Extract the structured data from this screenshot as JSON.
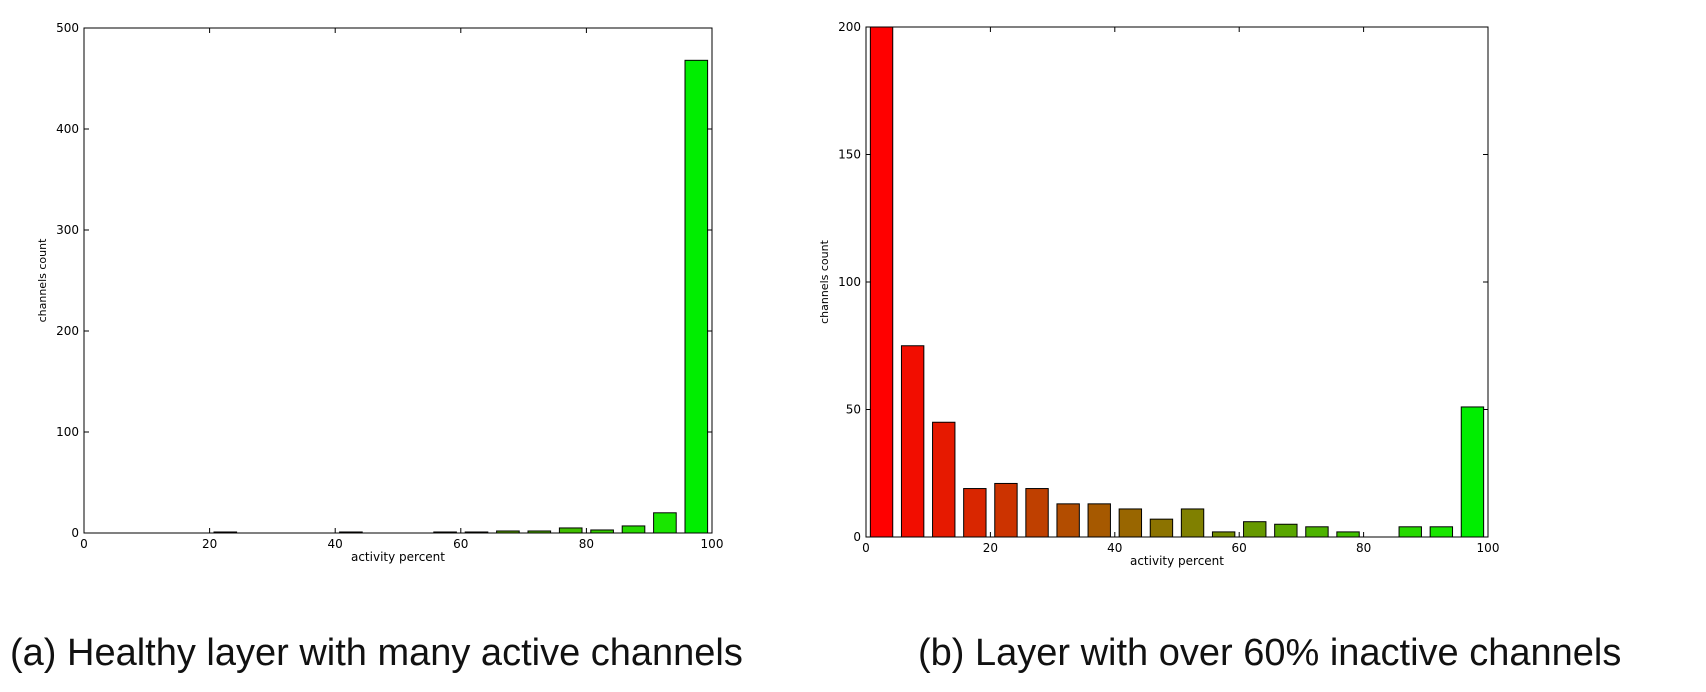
{
  "figure": {
    "captions": [
      "(a) Healthy layer with many active channels",
      "(b) Layer with over 60% inactive channels"
    ]
  },
  "chart_data": [
    {
      "type": "bar",
      "xlabel": "activity percent",
      "ylabel": "channels count",
      "xlim": [
        0,
        100
      ],
      "ylim": [
        0,
        500
      ],
      "xticks": [
        0,
        20,
        40,
        60,
        80,
        100
      ],
      "yticks": [
        0,
        100,
        200,
        300,
        400,
        500
      ],
      "grid": false,
      "bins": [
        2.5,
        7.5,
        12.5,
        17.5,
        22.5,
        27.5,
        32.5,
        37.5,
        42.5,
        47.5,
        52.5,
        57.5,
        62.5,
        67.5,
        72.5,
        77.5,
        82.5,
        87.5,
        92.5,
        97.5
      ],
      "values": [
        0,
        0,
        0,
        0,
        1,
        0,
        0,
        0,
        1,
        0,
        0,
        1,
        1,
        2,
        2,
        5,
        3,
        7,
        20,
        468
      ],
      "colors": [
        "#ff0000",
        "#f20d00",
        "#e61900",
        "#d92600",
        "#cc3300",
        "#bf4000",
        "#b34d00",
        "#a65900",
        "#996600",
        "#8c7300",
        "#808000",
        "#738c00",
        "#669900",
        "#59a600",
        "#4db300",
        "#40bf00",
        "#33cc00",
        "#26d900",
        "#19e600",
        "#00ee00"
      ]
    },
    {
      "type": "bar",
      "xlabel": "activity percent",
      "ylabel": "channels count",
      "xlim": [
        0,
        100
      ],
      "ylim": [
        0,
        200
      ],
      "xticks": [
        0,
        20,
        40,
        60,
        80,
        100
      ],
      "yticks": [
        0,
        50,
        100,
        150,
        200
      ],
      "grid": false,
      "bins": [
        2.5,
        7.5,
        12.5,
        17.5,
        22.5,
        27.5,
        32.5,
        37.5,
        42.5,
        47.5,
        52.5,
        57.5,
        62.5,
        67.5,
        72.5,
        77.5,
        82.5,
        87.5,
        92.5,
        97.5
      ],
      "values": [
        200,
        75,
        45,
        19,
        21,
        19,
        13,
        13,
        11,
        7,
        11,
        2,
        6,
        5,
        4,
        2,
        0,
        4,
        4,
        51
      ],
      "colors": [
        "#ff0000",
        "#f20d00",
        "#e61900",
        "#d92600",
        "#cc3300",
        "#bf4000",
        "#b34d00",
        "#a65900",
        "#996600",
        "#8c7300",
        "#808000",
        "#738c00",
        "#669900",
        "#59a600",
        "#4db300",
        "#40bf00",
        "#33cc00",
        "#26d900",
        "#19e600",
        "#00ee00"
      ]
    }
  ]
}
